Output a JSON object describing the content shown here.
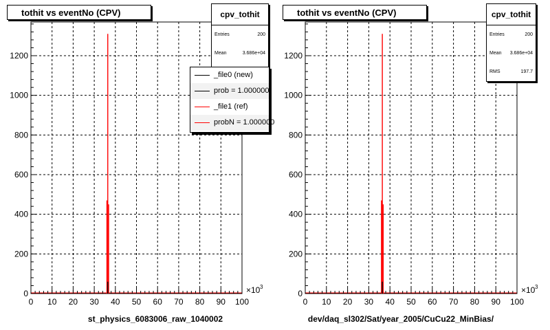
{
  "chart_data": [
    {
      "type": "bar",
      "title": "tothit vs eventNo (CPV)",
      "xlabel": "st_physics_6083006_raw_1040002",
      "x_multiplier": "×10",
      "x_multiplier_exp": "3",
      "xlim": [
        0,
        100
      ],
      "ylim": [
        0,
        1370
      ],
      "xticks": [
        0,
        10,
        20,
        30,
        40,
        50,
        60,
        70,
        80,
        90,
        100
      ],
      "yticks": [
        0,
        200,
        400,
        600,
        800,
        1000,
        1200
      ],
      "grid": true,
      "series": [
        {
          "name": "_file0 (new)",
          "color": "#000000",
          "bins": [
            {
              "x": 36.0,
              "y": 0
            },
            {
              "x": 36.4,
              "y": 60
            },
            {
              "x": 36.8,
              "y": 0
            }
          ]
        },
        {
          "name": "_file1 (ref)",
          "color": "#ff0000",
          "bins": [
            {
              "x": 36.0,
              "y": 470
            },
            {
              "x": 36.4,
              "y": 1310
            },
            {
              "x": 36.8,
              "y": 450
            }
          ]
        }
      ],
      "stats": {
        "name": "cpv_tothit",
        "rows": [
          {
            "label": "Entries",
            "value": "200"
          },
          {
            "label": "Mean",
            "value": "3.686e+04"
          }
        ]
      },
      "legend": {
        "placement": "top-right",
        "entries": [
          {
            "text": "_file0 (new)",
            "color": "#000000"
          },
          {
            "text": "prob = 1.000000",
            "color": "#000000"
          },
          {
            "text": "_file1 (ref)",
            "color": "#ff0000"
          },
          {
            "text": "probN = 1.000000",
            "color": "#ff0000"
          }
        ]
      }
    },
    {
      "type": "bar",
      "title": "tothit vs eventNo (CPV)",
      "xlabel": "dev/daq_sl302/Sat/year_2005/CuCu22_MinBias/",
      "x_multiplier": "×10",
      "x_multiplier_exp": "3",
      "xlim": [
        0,
        100
      ],
      "ylim": [
        0,
        1370
      ],
      "xticks": [
        0,
        10,
        20,
        30,
        40,
        50,
        60,
        70,
        80,
        90,
        100
      ],
      "yticks": [
        0,
        200,
        400,
        600,
        800,
        1000,
        1200
      ],
      "grid": true,
      "series": [
        {
          "name": "",
          "color": "#000000",
          "bins": [
            {
              "x": 36.0,
              "y": 0
            },
            {
              "x": 36.4,
              "y": 60
            },
            {
              "x": 36.8,
              "y": 0
            }
          ]
        },
        {
          "name": "",
          "color": "#ff0000",
          "bins": [
            {
              "x": 36.0,
              "y": 470
            },
            {
              "x": 36.4,
              "y": 1310
            },
            {
              "x": 36.8,
              "y": 450
            }
          ]
        }
      ],
      "stats": {
        "name": "cpv_tothit",
        "rows": [
          {
            "label": "Entries",
            "value": "200"
          },
          {
            "label": "Mean",
            "value": "3.686e+04"
          },
          {
            "label": "RMS",
            "value": "197.7"
          }
        ]
      }
    }
  ]
}
